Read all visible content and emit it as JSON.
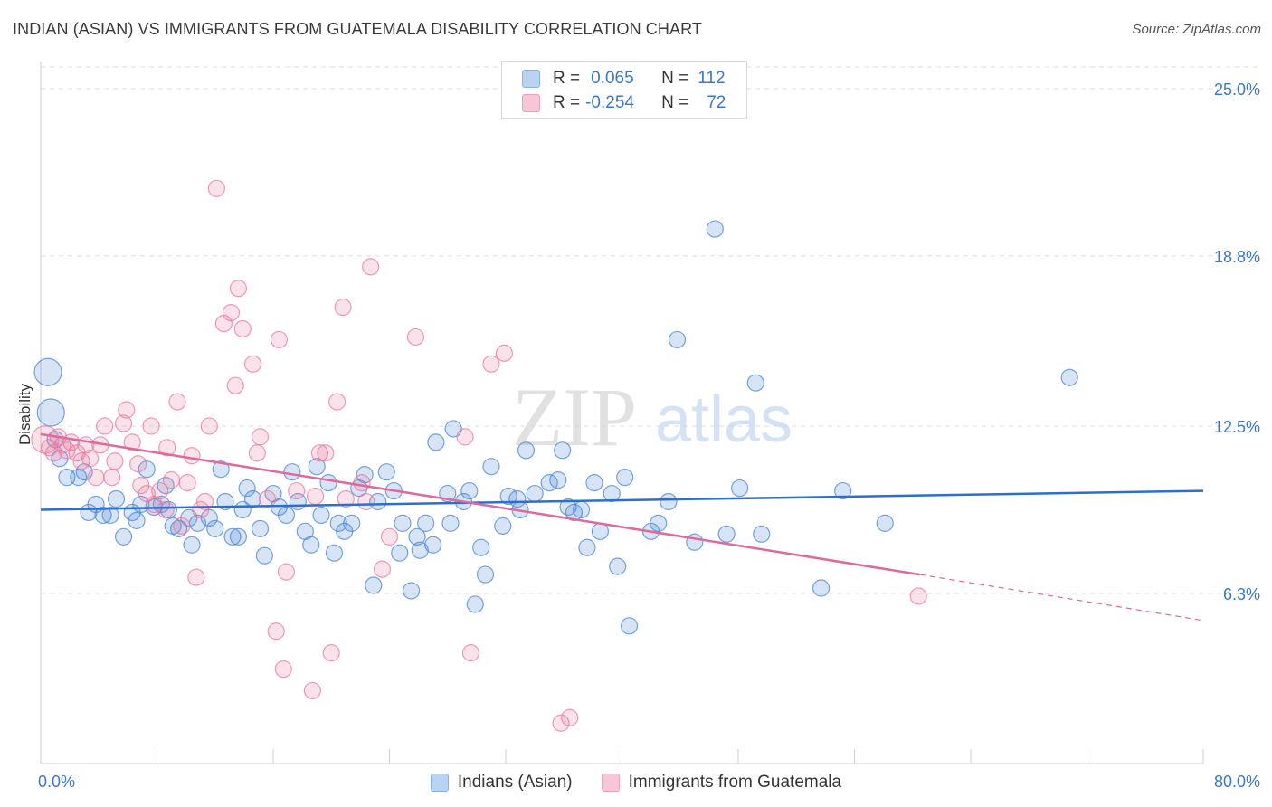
{
  "title": "INDIAN (ASIAN) VS IMMIGRANTS FROM GUATEMALA DISABILITY CORRELATION CHART",
  "source": "Source: ZipAtlas.com",
  "watermark": {
    "zip": "ZIP",
    "atlas": "atlas"
  },
  "legend": {
    "r_label": "R =",
    "n_label": "N =",
    "rows": [
      {
        "r": "0.065",
        "n": "112"
      },
      {
        "r": "-0.254",
        "n": "72"
      }
    ]
  },
  "chart_data": {
    "type": "scatter",
    "xlabel": "",
    "ylabel": "Disability",
    "xlim": [
      0,
      80
    ],
    "ylim": [
      0,
      25.8
    ],
    "x_tick_labels": [
      "0.0%",
      "80.0%"
    ],
    "y_ticks": [
      6.3,
      12.5,
      18.8,
      25.0
    ],
    "y_tick_labels": [
      "6.3%",
      "12.5%",
      "18.8%",
      "25.0%"
    ],
    "grid": true,
    "legend_position": "top-center",
    "colors": {
      "blue": "#4a86d4",
      "pink": "#e8799f",
      "blue_line": "#2d6fcc",
      "pink_line": "#e0689a",
      "tick_text": "#3b78c9"
    },
    "series": [
      {
        "name": "Indians (Asian)",
        "color": "blue",
        "trend": {
          "x": [
            0,
            80
          ],
          "y": [
            9.4,
            10.1
          ]
        },
        "points": [
          {
            "x": 0.5,
            "y": 14.5,
            "big": true
          },
          {
            "x": 0.7,
            "y": 13.0,
            "big": true
          },
          {
            "x": 1.0,
            "y": 12.0
          },
          {
            "x": 1.3,
            "y": 11.3
          },
          {
            "x": 1.8,
            "y": 10.6
          },
          {
            "x": 2.6,
            "y": 10.6
          },
          {
            "x": 3.0,
            "y": 10.8
          },
          {
            "x": 3.3,
            "y": 9.3
          },
          {
            "x": 3.8,
            "y": 9.6
          },
          {
            "x": 4.3,
            "y": 9.2
          },
          {
            "x": 4.8,
            "y": 9.2
          },
          {
            "x": 5.2,
            "y": 9.8
          },
          {
            "x": 5.7,
            "y": 8.4
          },
          {
            "x": 6.3,
            "y": 9.3
          },
          {
            "x": 6.6,
            "y": 9.0
          },
          {
            "x": 6.9,
            "y": 9.6
          },
          {
            "x": 7.3,
            "y": 10.9
          },
          {
            "x": 7.8,
            "y": 9.5
          },
          {
            "x": 8.3,
            "y": 9.6
          },
          {
            "x": 8.6,
            "y": 10.3
          },
          {
            "x": 8.8,
            "y": 9.4
          },
          {
            "x": 9.1,
            "y": 8.8
          },
          {
            "x": 9.5,
            "y": 8.7
          },
          {
            "x": 10.2,
            "y": 9.1
          },
          {
            "x": 10.4,
            "y": 8.1
          },
          {
            "x": 10.8,
            "y": 8.9
          },
          {
            "x": 11.6,
            "y": 9.1
          },
          {
            "x": 12.0,
            "y": 8.7
          },
          {
            "x": 12.4,
            "y": 10.9
          },
          {
            "x": 12.7,
            "y": 9.7
          },
          {
            "x": 13.2,
            "y": 8.4
          },
          {
            "x": 13.6,
            "y": 8.4
          },
          {
            "x": 13.9,
            "y": 9.4
          },
          {
            "x": 14.2,
            "y": 10.2
          },
          {
            "x": 14.6,
            "y": 9.8
          },
          {
            "x": 15.1,
            "y": 8.7
          },
          {
            "x": 15.4,
            "y": 7.7
          },
          {
            "x": 16.0,
            "y": 10.0
          },
          {
            "x": 16.4,
            "y": 9.5
          },
          {
            "x": 16.9,
            "y": 9.2
          },
          {
            "x": 17.3,
            "y": 10.8
          },
          {
            "x": 17.7,
            "y": 9.7
          },
          {
            "x": 18.2,
            "y": 8.6
          },
          {
            "x": 18.6,
            "y": 8.1
          },
          {
            "x": 19.0,
            "y": 11.0
          },
          {
            "x": 19.3,
            "y": 9.2
          },
          {
            "x": 19.8,
            "y": 10.4
          },
          {
            "x": 20.2,
            "y": 7.8
          },
          {
            "x": 20.5,
            "y": 8.9
          },
          {
            "x": 20.9,
            "y": 8.6
          },
          {
            "x": 21.4,
            "y": 8.9
          },
          {
            "x": 21.9,
            "y": 10.2
          },
          {
            "x": 22.3,
            "y": 10.7
          },
          {
            "x": 22.9,
            "y": 6.6
          },
          {
            "x": 23.2,
            "y": 9.7
          },
          {
            "x": 23.8,
            "y": 10.8
          },
          {
            "x": 24.3,
            "y": 10.1
          },
          {
            "x": 24.7,
            "y": 7.8
          },
          {
            "x": 24.9,
            "y": 8.9
          },
          {
            "x": 25.5,
            "y": 6.4
          },
          {
            "x": 25.9,
            "y": 8.4
          },
          {
            "x": 26.1,
            "y": 7.9
          },
          {
            "x": 26.5,
            "y": 8.9
          },
          {
            "x": 27.0,
            "y": 8.1
          },
          {
            "x": 27.2,
            "y": 11.9
          },
          {
            "x": 28.0,
            "y": 10.0
          },
          {
            "x": 28.2,
            "y": 8.9
          },
          {
            "x": 28.4,
            "y": 12.4
          },
          {
            "x": 29.1,
            "y": 9.7
          },
          {
            "x": 29.5,
            "y": 10.1
          },
          {
            "x": 29.9,
            "y": 5.9
          },
          {
            "x": 30.3,
            "y": 8.0
          },
          {
            "x": 30.6,
            "y": 7.0
          },
          {
            "x": 31.0,
            "y": 11.0
          },
          {
            "x": 31.8,
            "y": 8.8
          },
          {
            "x": 32.2,
            "y": 9.9
          },
          {
            "x": 32.8,
            "y": 9.8
          },
          {
            "x": 33.0,
            "y": 9.4
          },
          {
            "x": 33.4,
            "y": 11.6
          },
          {
            "x": 34.0,
            "y": 10.0
          },
          {
            "x": 35.0,
            "y": 10.4
          },
          {
            "x": 35.6,
            "y": 10.5
          },
          {
            "x": 35.9,
            "y": 11.6
          },
          {
            "x": 36.3,
            "y": 9.5
          },
          {
            "x": 36.7,
            "y": 9.3
          },
          {
            "x": 37.2,
            "y": 9.4
          },
          {
            "x": 37.6,
            "y": 8.0
          },
          {
            "x": 38.1,
            "y": 10.4
          },
          {
            "x": 38.5,
            "y": 8.6
          },
          {
            "x": 39.3,
            "y": 10.0
          },
          {
            "x": 39.7,
            "y": 7.3
          },
          {
            "x": 40.2,
            "y": 10.6
          },
          {
            "x": 40.5,
            "y": 5.1
          },
          {
            "x": 42.0,
            "y": 8.6
          },
          {
            "x": 42.5,
            "y": 8.9
          },
          {
            "x": 43.2,
            "y": 9.7
          },
          {
            "x": 43.8,
            "y": 15.7
          },
          {
            "x": 45.0,
            "y": 8.2
          },
          {
            "x": 46.4,
            "y": 19.8
          },
          {
            "x": 47.2,
            "y": 8.5
          },
          {
            "x": 48.1,
            "y": 10.2
          },
          {
            "x": 49.2,
            "y": 14.1
          },
          {
            "x": 49.6,
            "y": 8.5
          },
          {
            "x": 53.7,
            "y": 6.5
          },
          {
            "x": 55.2,
            "y": 10.1
          },
          {
            "x": 58.1,
            "y": 8.9
          },
          {
            "x": 70.8,
            "y": 14.3
          }
        ]
      },
      {
        "name": "Immigrants from Guatemala",
        "color": "pink",
        "trend": {
          "x": [
            0,
            60.5
          ],
          "y": [
            12.2,
            7.0
          ],
          "dash": {
            "x": [
              60.5,
              80
            ],
            "y": [
              7.0,
              5.3
            ]
          }
        },
        "points": [
          {
            "x": 0.3,
            "y": 12.0,
            "big": true
          },
          {
            "x": 0.6,
            "y": 11.7
          },
          {
            "x": 0.9,
            "y": 11.5
          },
          {
            "x": 1.2,
            "y": 12.1
          },
          {
            "x": 1.5,
            "y": 11.8
          },
          {
            "x": 1.8,
            "y": 11.6
          },
          {
            "x": 2.1,
            "y": 11.9
          },
          {
            "x": 2.5,
            "y": 11.5
          },
          {
            "x": 2.8,
            "y": 11.2
          },
          {
            "x": 3.1,
            "y": 11.8
          },
          {
            "x": 3.4,
            "y": 11.3
          },
          {
            "x": 3.8,
            "y": 10.6
          },
          {
            "x": 4.1,
            "y": 11.8
          },
          {
            "x": 4.4,
            "y": 12.5
          },
          {
            "x": 4.9,
            "y": 10.6
          },
          {
            "x": 5.1,
            "y": 11.2
          },
          {
            "x": 5.7,
            "y": 12.6
          },
          {
            "x": 5.9,
            "y": 13.1
          },
          {
            "x": 6.3,
            "y": 11.9
          },
          {
            "x": 6.7,
            "y": 11.1
          },
          {
            "x": 6.9,
            "y": 10.3
          },
          {
            "x": 7.3,
            "y": 10.0
          },
          {
            "x": 7.6,
            "y": 12.5
          },
          {
            "x": 7.8,
            "y": 9.6
          },
          {
            "x": 8.2,
            "y": 10.1
          },
          {
            "x": 8.6,
            "y": 9.4
          },
          {
            "x": 8.7,
            "y": 11.7
          },
          {
            "x": 9.0,
            "y": 10.5
          },
          {
            "x": 9.4,
            "y": 13.4
          },
          {
            "x": 9.7,
            "y": 8.8
          },
          {
            "x": 10.1,
            "y": 10.4
          },
          {
            "x": 10.4,
            "y": 11.4
          },
          {
            "x": 10.7,
            "y": 6.9
          },
          {
            "x": 11.0,
            "y": 9.4
          },
          {
            "x": 11.3,
            "y": 9.7
          },
          {
            "x": 11.6,
            "y": 12.5
          },
          {
            "x": 12.1,
            "y": 21.3
          },
          {
            "x": 12.6,
            "y": 16.3
          },
          {
            "x": 13.1,
            "y": 16.7
          },
          {
            "x": 13.4,
            "y": 14.0
          },
          {
            "x": 13.6,
            "y": 17.6
          },
          {
            "x": 13.9,
            "y": 16.1
          },
          {
            "x": 14.6,
            "y": 14.8
          },
          {
            "x": 14.9,
            "y": 11.5
          },
          {
            "x": 15.1,
            "y": 12.1
          },
          {
            "x": 15.6,
            "y": 9.8
          },
          {
            "x": 16.2,
            "y": 4.9
          },
          {
            "x": 16.4,
            "y": 15.7
          },
          {
            "x": 16.7,
            "y": 3.5
          },
          {
            "x": 16.9,
            "y": 7.1
          },
          {
            "x": 17.6,
            "y": 10.1
          },
          {
            "x": 18.7,
            "y": 2.7
          },
          {
            "x": 18.9,
            "y": 9.9
          },
          {
            "x": 19.2,
            "y": 11.5
          },
          {
            "x": 19.6,
            "y": 11.5
          },
          {
            "x": 20.0,
            "y": 4.1
          },
          {
            "x": 20.4,
            "y": 13.4
          },
          {
            "x": 20.8,
            "y": 16.9
          },
          {
            "x": 21.0,
            "y": 9.8
          },
          {
            "x": 22.1,
            "y": 10.4
          },
          {
            "x": 22.4,
            "y": 9.7
          },
          {
            "x": 22.7,
            "y": 18.4
          },
          {
            "x": 23.5,
            "y": 7.2
          },
          {
            "x": 24.0,
            "y": 8.4
          },
          {
            "x": 25.8,
            "y": 15.8
          },
          {
            "x": 29.2,
            "y": 12.1
          },
          {
            "x": 29.6,
            "y": 4.1
          },
          {
            "x": 31.0,
            "y": 14.8
          },
          {
            "x": 31.9,
            "y": 15.2
          },
          {
            "x": 35.8,
            "y": 1.5
          },
          {
            "x": 36.4,
            "y": 1.7
          },
          {
            "x": 60.4,
            "y": 6.2
          }
        ]
      }
    ]
  },
  "bottom_legend": [
    "Indians (Asian)",
    "Immigrants from Guatemala"
  ]
}
